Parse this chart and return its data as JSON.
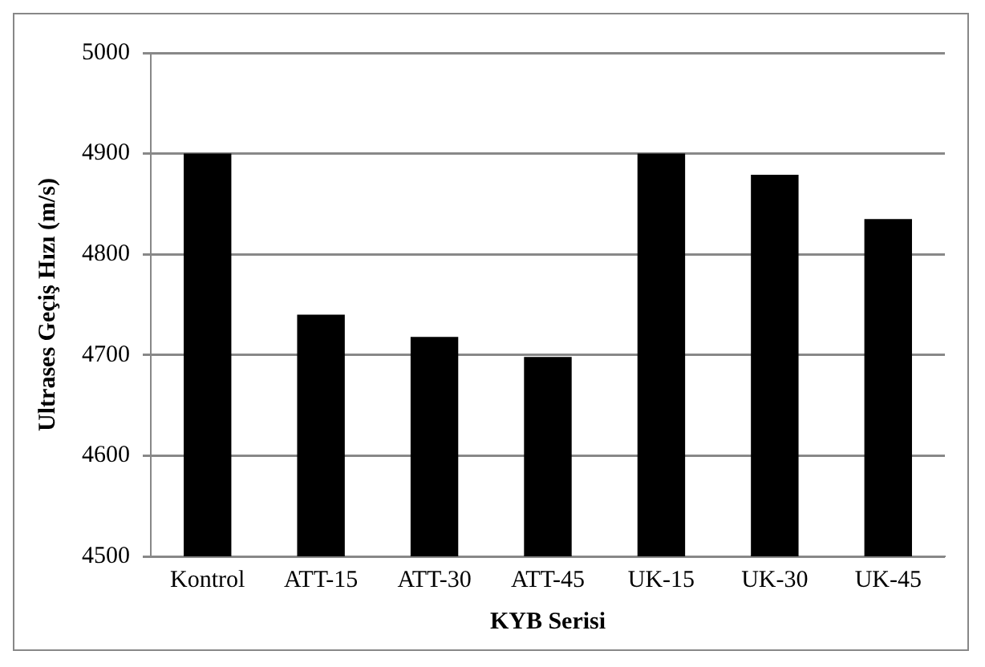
{
  "chart_data": {
    "type": "bar",
    "xlabel": "KYB Serisi",
    "ylabel": "Ultrases Geçiş Hızı (m/s)",
    "categories": [
      "Kontrol",
      "ATT-15",
      "ATT-30",
      "ATT-45",
      "UK-15",
      "UK-30",
      "UK-45"
    ],
    "values": [
      4900,
      4740,
      4718,
      4698,
      4900,
      4879,
      4835
    ],
    "color": "#000000",
    "ylim": [
      4500,
      5000
    ],
    "yticks": [
      4500,
      4600,
      4700,
      4800,
      4900,
      5000
    ],
    "grid": "y",
    "legend": false
  }
}
